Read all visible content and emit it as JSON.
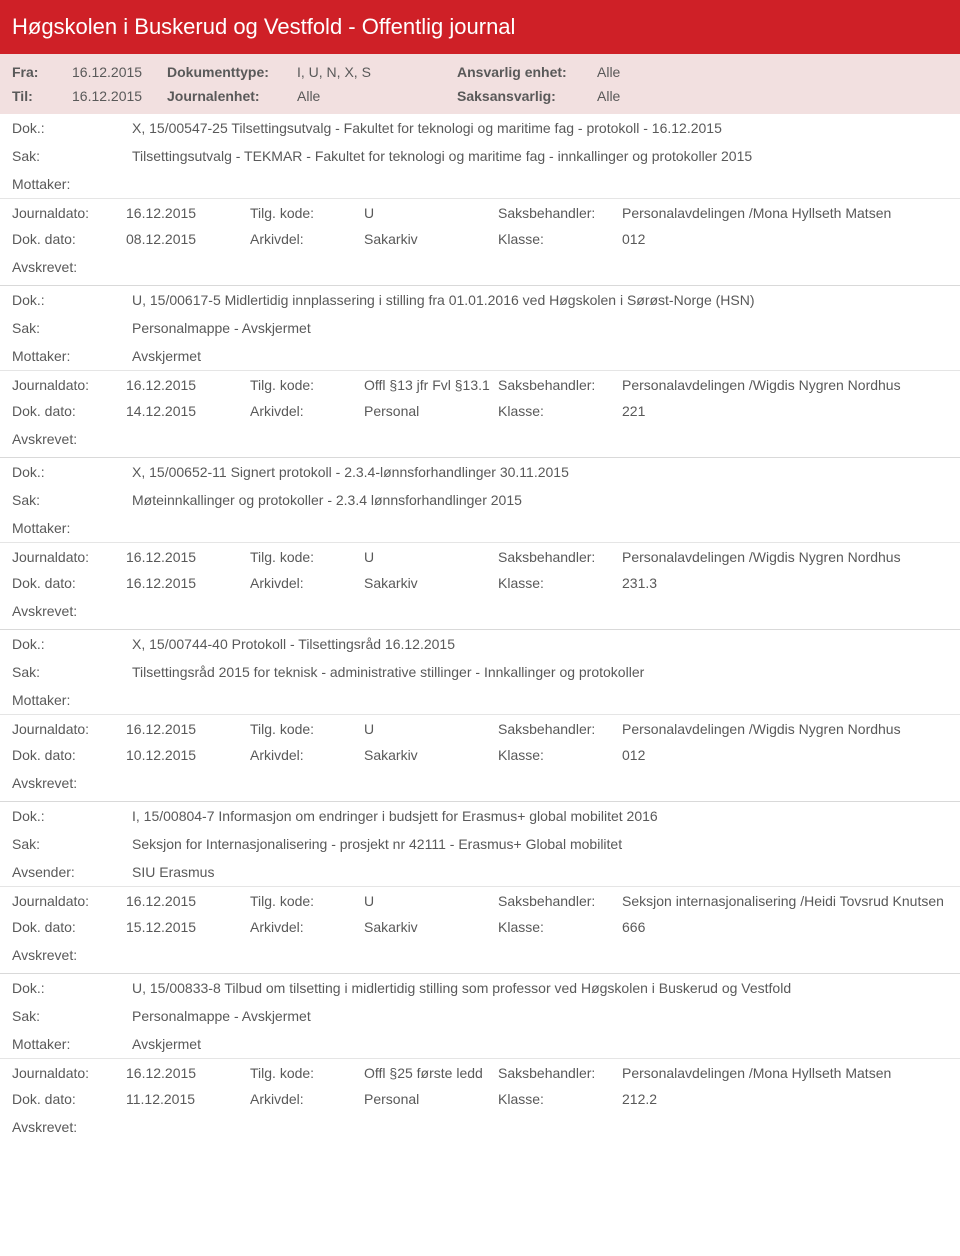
{
  "header": {
    "title": "Høgskolen i Buskerud og Vestfold - Offentlig journal"
  },
  "filter": {
    "fra_label": "Fra:",
    "fra_value": "16.12.2015",
    "til_label": "Til:",
    "til_value": "16.12.2015",
    "doktype_label": "Dokumenttype:",
    "doktype_value": "I, U, N, X, S",
    "journalenhet_label": "Journalenhet:",
    "journalenhet_value": "Alle",
    "ansvarlig_label": "Ansvarlig enhet:",
    "ansvarlig_value": "Alle",
    "saksansvarlig_label": "Saksansvarlig:",
    "saksansvarlig_value": "Alle"
  },
  "labels": {
    "dok": "Dok.:",
    "sak": "Sak:",
    "mottaker": "Mottaker:",
    "avsender": "Avsender:",
    "journaldato": "Journaldato:",
    "dokdato": "Dok. dato:",
    "tilgkode": "Tilg. kode:",
    "arkivdel": "Arkivdel:",
    "saksbehandler": "Saksbehandler:",
    "klasse": "Klasse:",
    "avskrevet": "Avskrevet:"
  },
  "entries": [
    {
      "dok": "X, 15/00547-25 Tilsettingsutvalg - Fakultet for teknologi og maritime fag - protokoll - 16.12.2015",
      "sak": "Tilsettingsutvalg - TEKMAR - Fakultet for teknologi og maritime fag - innkallinger og protokoller 2015",
      "party_label": "Mottaker:",
      "party_value": "",
      "journaldato": "16.12.2015",
      "dokdato": "08.12.2015",
      "tilgkode": "U",
      "arkivdel": "Sakarkiv",
      "saksbehandler": "Personalavdelingen /Mona Hyllseth Matsen",
      "klasse": "012"
    },
    {
      "dok": "U, 15/00617-5 Midlertidig innplassering i stilling fra 01.01.2016 ved Høgskolen i Sørøst-Norge (HSN)",
      "sak": "Personalmappe - Avskjermet",
      "party_label": "Mottaker:",
      "party_value": "Avskjermet",
      "journaldato": "16.12.2015",
      "dokdato": "14.12.2015",
      "tilgkode": "Offl §13 jfr Fvl §13.1",
      "arkivdel": "Personal",
      "saksbehandler": "Personalavdelingen /Wigdis Nygren Nordhus",
      "klasse": "221"
    },
    {
      "dok": "X, 15/00652-11 Signert protokoll - 2.3.4-lønnsforhandlinger 30.11.2015",
      "sak": "Møteinnkallinger og protokoller - 2.3.4 lønnsforhandlinger 2015",
      "party_label": "Mottaker:",
      "party_value": "",
      "journaldato": "16.12.2015",
      "dokdato": "16.12.2015",
      "tilgkode": "U",
      "arkivdel": "Sakarkiv",
      "saksbehandler": "Personalavdelingen /Wigdis Nygren Nordhus",
      "klasse": "231.3"
    },
    {
      "dok": "X, 15/00744-40 Protokoll - Tilsettingsråd 16.12.2015",
      "sak": "Tilsettingsråd 2015 for teknisk - administrative stillinger - Innkallinger og protokoller",
      "party_label": "Mottaker:",
      "party_value": "",
      "journaldato": "16.12.2015",
      "dokdato": "10.12.2015",
      "tilgkode": "U",
      "arkivdel": "Sakarkiv",
      "saksbehandler": "Personalavdelingen /Wigdis Nygren Nordhus",
      "klasse": "012"
    },
    {
      "dok": "I, 15/00804-7 Informasjon om endringer i budsjett for Erasmus+ global mobilitet 2016",
      "sak": "Seksjon for Internasjonalisering - prosjekt nr 42111 - Erasmus+ Global mobilitet",
      "party_label": "Avsender:",
      "party_value": "SIU Erasmus",
      "journaldato": "16.12.2015",
      "dokdato": "15.12.2015",
      "tilgkode": "U",
      "arkivdel": "Sakarkiv",
      "saksbehandler": "Seksjon internasjonalisering /Heidi Tovsrud Knutsen",
      "klasse": "666"
    },
    {
      "dok": "U, 15/00833-8 Tilbud om tilsetting i midlertidig stilling som professor ved Høgskolen i Buskerud og Vestfold",
      "sak": "Personalmappe - Avskjermet",
      "party_label": "Mottaker:",
      "party_value": "Avskjermet",
      "journaldato": "16.12.2015",
      "dokdato": "11.12.2015",
      "tilgkode": "Offl §25 første ledd",
      "arkivdel": "Personal",
      "saksbehandler": "Personalavdelingen /Mona Hyllseth Matsen",
      "klasse": "212.2"
    }
  ]
}
